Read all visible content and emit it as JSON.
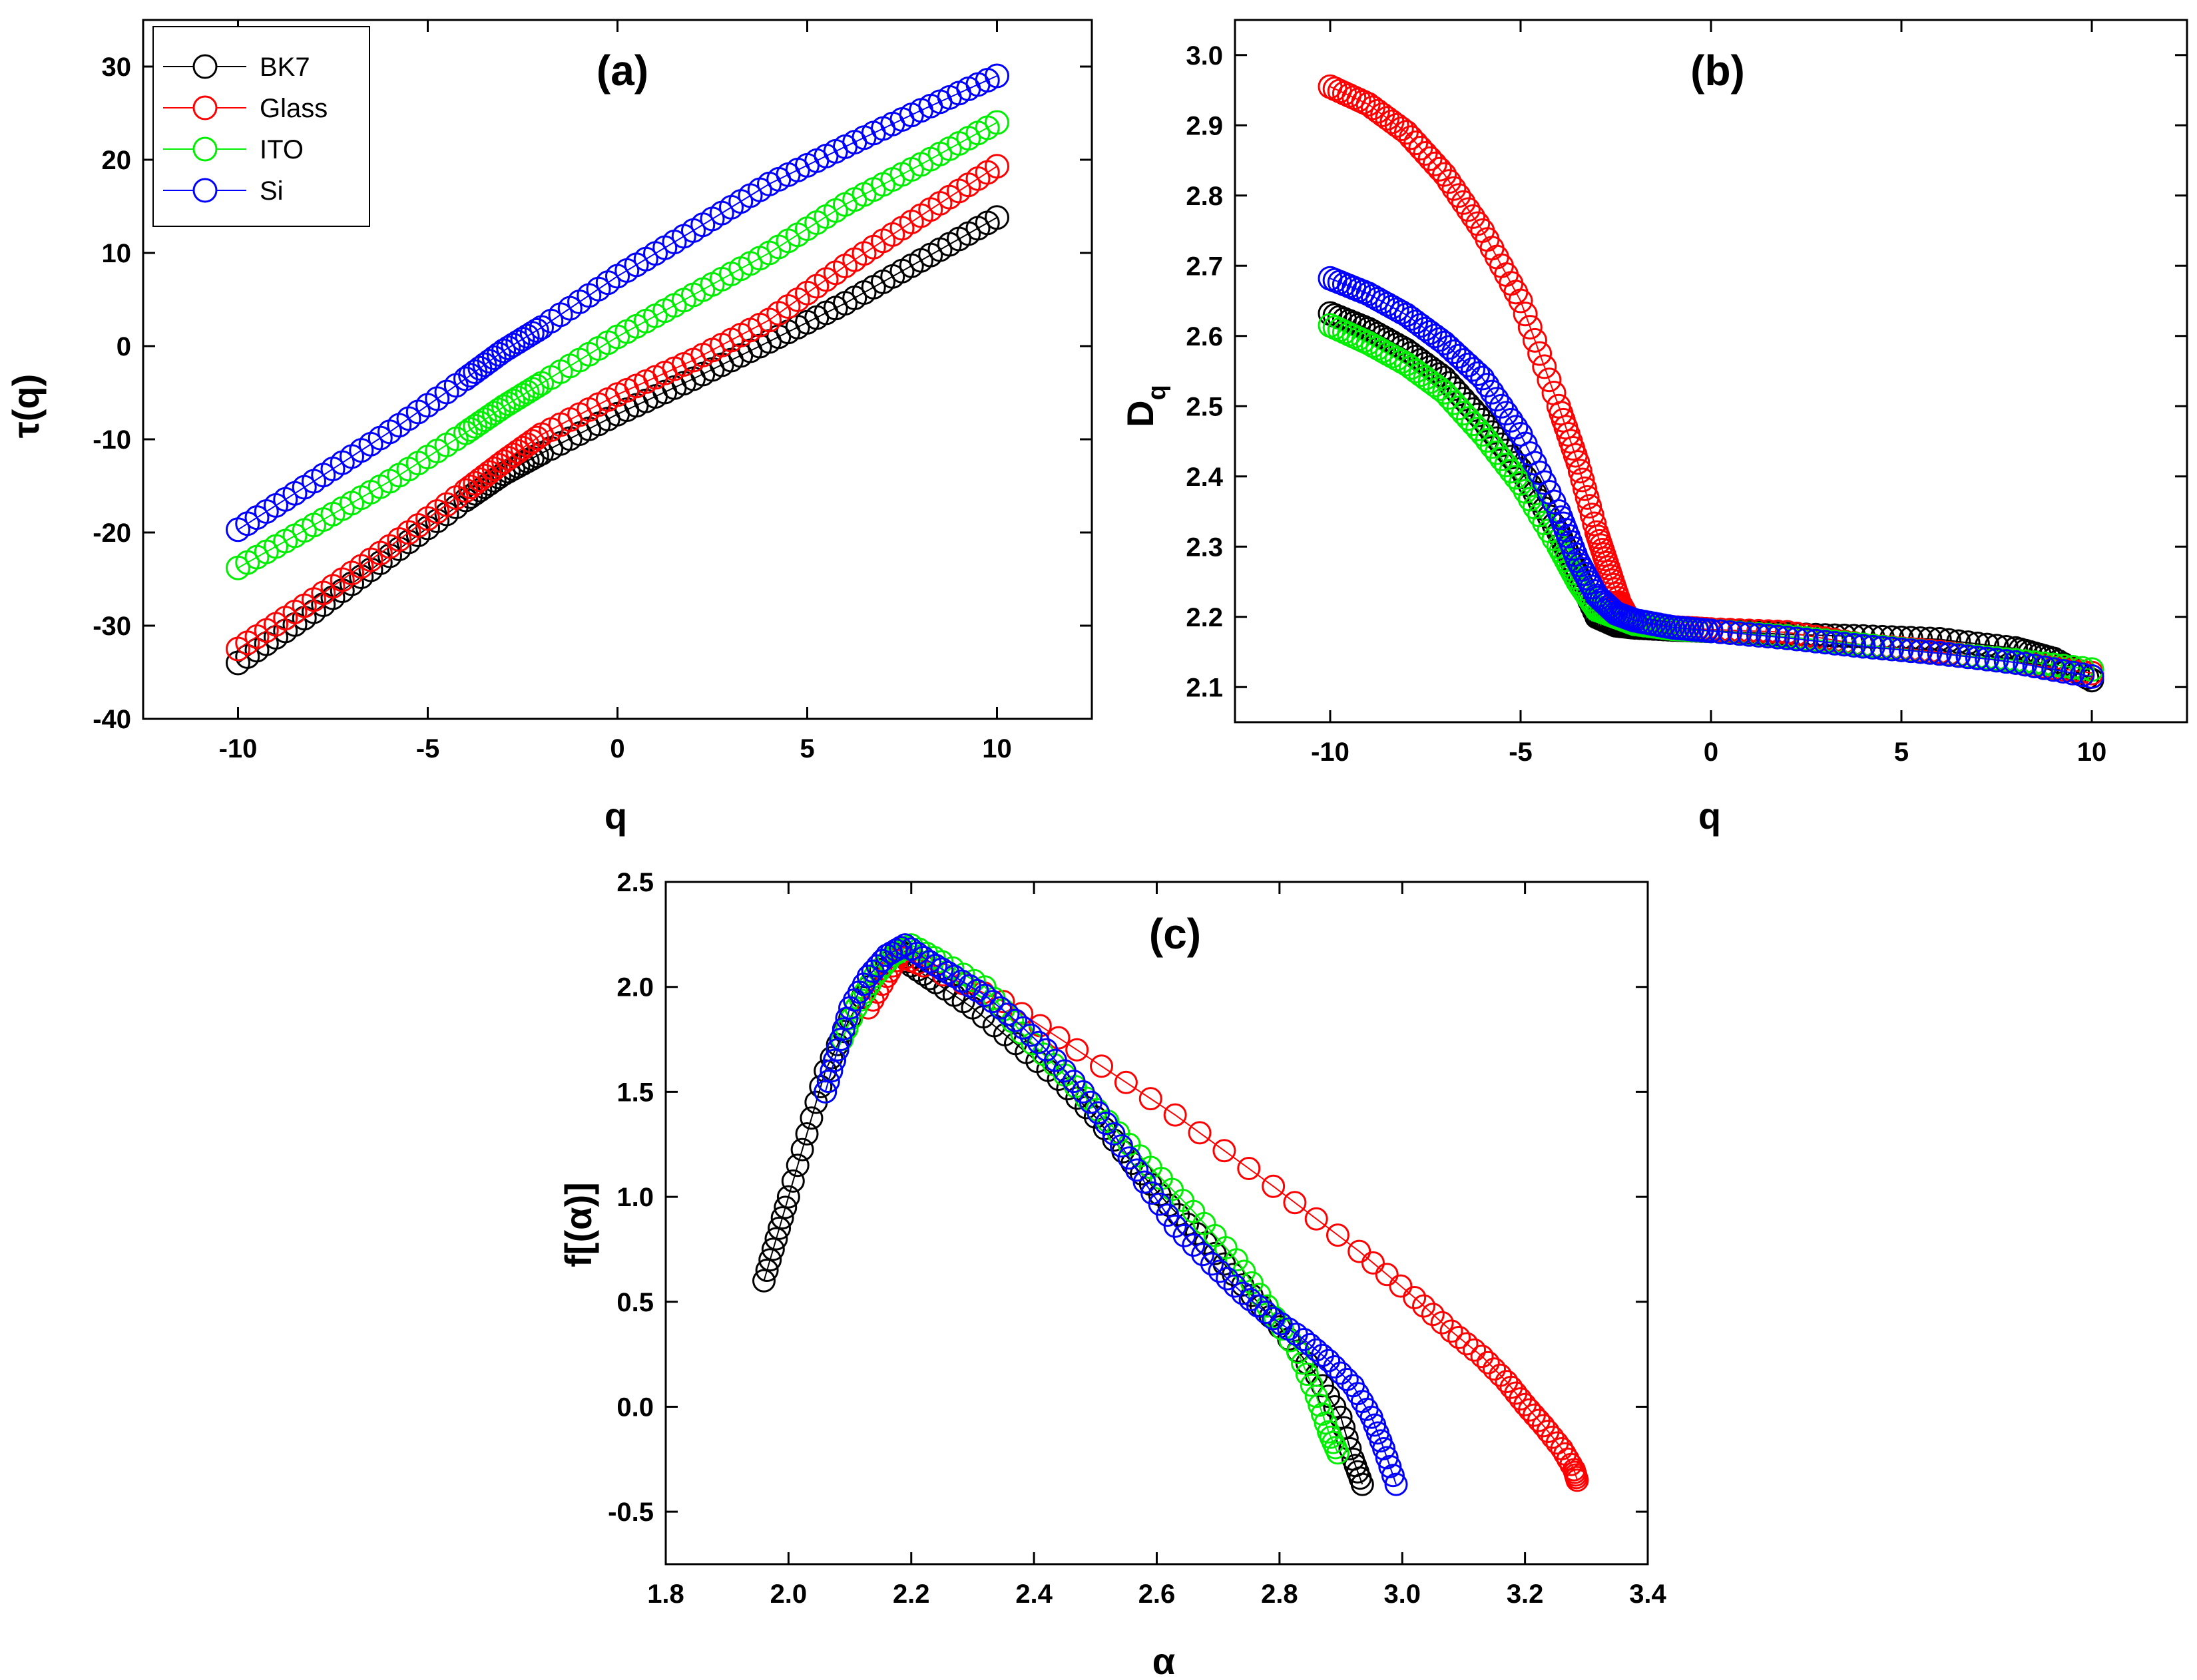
{
  "figure": {
    "background": "#ffffff"
  },
  "chart_data": [
    {
      "id": "panel-a",
      "type": "scatter",
      "title": "(a)",
      "xlabel": "q",
      "ylabel": "τ(q)",
      "xlim": [
        -12.5,
        12.5
      ],
      "ylim": [
        -40,
        35
      ],
      "xticks": [
        -10,
        -5,
        0,
        5,
        10
      ],
      "yticks": [
        -40,
        -30,
        -20,
        -10,
        0,
        10,
        20,
        30
      ],
      "grid": false,
      "legend": "top-left",
      "series": [
        {
          "name": "BK7",
          "color": "#000000",
          "x": [
            -10,
            -8,
            -6,
            -4,
            -3,
            -2,
            0,
            2,
            4,
            6,
            8,
            10
          ],
          "y": [
            -34,
            -28.5,
            -22.5,
            -16.5,
            -13.7,
            -11.5,
            -7.3,
            -3.5,
            0.5,
            4.6,
            9.2,
            13.8
          ]
        },
        {
          "name": "Glass",
          "color": "#ff0000",
          "x": [
            -10,
            -8,
            -6,
            -4,
            -3,
            -2,
            0,
            2,
            4,
            6,
            8,
            10
          ],
          "y": [
            -32.5,
            -27.2,
            -21.5,
            -15.5,
            -12.4,
            -9.5,
            -5.2,
            -1.5,
            2.8,
            8.6,
            14,
            19.3
          ]
        },
        {
          "name": "ITO",
          "color": "#00ee00",
          "x": [
            -10,
            -8,
            -6,
            -4,
            -3,
            -2,
            0,
            2,
            4,
            6,
            8,
            10
          ],
          "y": [
            -23.8,
            -19.2,
            -14.5,
            -9.3,
            -6.5,
            -4,
            1,
            5.5,
            10,
            15.2,
            19.5,
            24
          ]
        },
        {
          "name": "Si",
          "color": "#0000ff",
          "x": [
            -10,
            -8,
            -6,
            -4,
            -3,
            -2,
            0,
            2,
            4,
            6,
            8,
            10
          ],
          "y": [
            -19.7,
            -14.5,
            -9.2,
            -3.5,
            -0.5,
            2,
            7.5,
            12.4,
            17.4,
            21.4,
            25.3,
            29
          ]
        }
      ]
    },
    {
      "id": "panel-b",
      "type": "scatter",
      "title": "(b)",
      "xlabel": "q",
      "ylabel": "D",
      "ylabel_subscript": "q",
      "xlim": [
        -12.5,
        12.5
      ],
      "ylim": [
        2.05,
        3.05
      ],
      "xticks": [
        -10,
        -5,
        0,
        5,
        10
      ],
      "yticks": [
        2.1,
        2.2,
        2.3,
        2.4,
        2.5,
        2.6,
        2.7,
        2.8,
        2.9,
        3.0
      ],
      "ytick_labels": [
        "2.1",
        "2.2",
        "2.3",
        "2.4",
        "2.5",
        "2.6",
        "2.7",
        "2.8",
        "2.9",
        "3.0"
      ],
      "grid": false,
      "series": [
        {
          "name": "BK7",
          "color": "#000000",
          "x": [
            -10,
            -9,
            -8,
            -7,
            -6,
            -5,
            -4,
            -3.5,
            -3,
            -2.5,
            -2,
            -1,
            0,
            2,
            4,
            6,
            8,
            9,
            10
          ],
          "y": [
            2.632,
            2.61,
            2.58,
            2.54,
            2.48,
            2.41,
            2.32,
            2.26,
            2.2,
            2.188,
            2.185,
            2.182,
            2.18,
            2.175,
            2.172,
            2.168,
            2.155,
            2.14,
            2.11
          ]
        },
        {
          "name": "Glass",
          "color": "#ff0000",
          "x": [
            -10,
            -9,
            -8,
            -7,
            -6,
            -5,
            -4,
            -3.5,
            -3,
            -2.7,
            -2.4,
            -2.2,
            -2,
            -1,
            0,
            2,
            4,
            6,
            8,
            10
          ],
          "y": [
            2.955,
            2.93,
            2.89,
            2.83,
            2.75,
            2.65,
            2.5,
            2.42,
            2.32,
            2.27,
            2.22,
            2.2,
            2.19,
            2.185,
            2.182,
            2.178,
            2.16,
            2.15,
            2.135,
            2.12
          ]
        },
        {
          "name": "ITO",
          "color": "#00ee00",
          "x": [
            -10,
            -9,
            -8,
            -7,
            -6,
            -5,
            -4,
            -3.5,
            -3,
            -2.5,
            -2,
            -1,
            0,
            2,
            4,
            6,
            8,
            10
          ],
          "y": [
            2.615,
            2.59,
            2.56,
            2.52,
            2.46,
            2.39,
            2.3,
            2.25,
            2.21,
            2.2,
            2.19,
            2.183,
            2.18,
            2.172,
            2.16,
            2.148,
            2.138,
            2.125
          ]
        },
        {
          "name": "Si",
          "color": "#0000ff",
          "x": [
            -10,
            -9,
            -8,
            -7,
            -6,
            -5,
            -4,
            -3.5,
            -3,
            -2.5,
            -2,
            -1,
            0,
            2,
            4,
            6,
            8,
            10
          ],
          "y": [
            2.682,
            2.66,
            2.63,
            2.59,
            2.54,
            2.46,
            2.35,
            2.28,
            2.23,
            2.205,
            2.195,
            2.185,
            2.18,
            2.17,
            2.158,
            2.148,
            2.135,
            2.115
          ]
        }
      ]
    },
    {
      "id": "panel-c",
      "type": "scatter",
      "title": "(c)",
      "xlabel": "α",
      "ylabel": "f[(α)]",
      "xlim": [
        1.8,
        3.4
      ],
      "ylim": [
        -0.75,
        2.5
      ],
      "xticks": [
        1.8,
        2.0,
        2.2,
        2.4,
        2.6,
        2.8,
        3.0,
        3.2,
        3.4
      ],
      "xtick_labels": [
        "1.8",
        "2.0",
        "2.2",
        "2.4",
        "2.6",
        "2.8",
        "3.0",
        "3.2",
        "3.4"
      ],
      "yticks": [
        -0.5,
        0.0,
        0.5,
        1.0,
        1.5,
        2.0,
        2.5
      ],
      "ytick_labels": [
        "-0.5",
        "0.0",
        "0.5",
        "1.0",
        "1.5",
        "2.0",
        "2.5"
      ],
      "grid": false,
      "series": [
        {
          "name": "BK7",
          "color": "#000000",
          "x": [
            1.96,
            1.98,
            2.0,
            2.03,
            2.06,
            2.1,
            2.14,
            2.18,
            2.2,
            2.24,
            2.3,
            2.37,
            2.44,
            2.5,
            2.56,
            2.62,
            2.68,
            2.74,
            2.8,
            2.86,
            2.9,
            2.92,
            2.935
          ],
          "y": [
            0.6,
            0.8,
            1.0,
            1.3,
            1.6,
            1.85,
            2.05,
            2.18,
            2.1,
            2.02,
            1.9,
            1.73,
            1.56,
            1.38,
            1.16,
            0.96,
            0.78,
            0.58,
            0.38,
            0.15,
            -0.05,
            -0.25,
            -0.37
          ]
        },
        {
          "name": "Glass",
          "color": "#ff0000",
          "x": [
            2.13,
            2.16,
            2.18,
            2.22,
            2.35,
            2.47,
            2.63,
            2.79,
            2.93,
            3.02,
            3.08,
            3.13,
            3.17,
            3.2,
            3.23,
            3.26,
            3.28,
            3.285
          ],
          "y": [
            1.9,
            2.05,
            2.15,
            2.1,
            1.93,
            1.7,
            1.39,
            1.05,
            0.74,
            0.52,
            0.36,
            0.24,
            0.12,
            0.01,
            -0.09,
            -0.2,
            -0.3,
            -0.35
          ]
        },
        {
          "name": "ITO",
          "color": "#00ee00",
          "x": [
            2.06,
            2.08,
            2.11,
            2.14,
            2.17,
            2.2,
            2.25,
            2.32,
            2.38,
            2.45,
            2.52,
            2.59,
            2.66,
            2.73,
            2.78,
            2.83,
            2.86,
            2.88,
            2.895
          ],
          "y": [
            1.5,
            1.7,
            1.9,
            2.05,
            2.15,
            2.2,
            2.12,
            2.0,
            1.78,
            1.58,
            1.36,
            1.14,
            0.93,
            0.7,
            0.48,
            0.26,
            0.05,
            -0.12,
            -0.22
          ]
        },
        {
          "name": "Si",
          "color": "#0000ff",
          "x": [
            2.06,
            2.08,
            2.1,
            2.13,
            2.16,
            2.19,
            2.23,
            2.27,
            2.32,
            2.37,
            2.42,
            2.48,
            2.53,
            2.58,
            2.63,
            2.69,
            2.74,
            2.79,
            2.84,
            2.88,
            2.92,
            2.95,
            2.97,
            2.99
          ],
          "y": [
            1.5,
            1.7,
            1.9,
            2.05,
            2.15,
            2.2,
            2.12,
            2.05,
            1.96,
            1.84,
            1.7,
            1.5,
            1.3,
            1.07,
            0.86,
            0.68,
            0.54,
            0.42,
            0.32,
            0.22,
            0.1,
            -0.05,
            -0.2,
            -0.37
          ]
        }
      ]
    }
  ]
}
